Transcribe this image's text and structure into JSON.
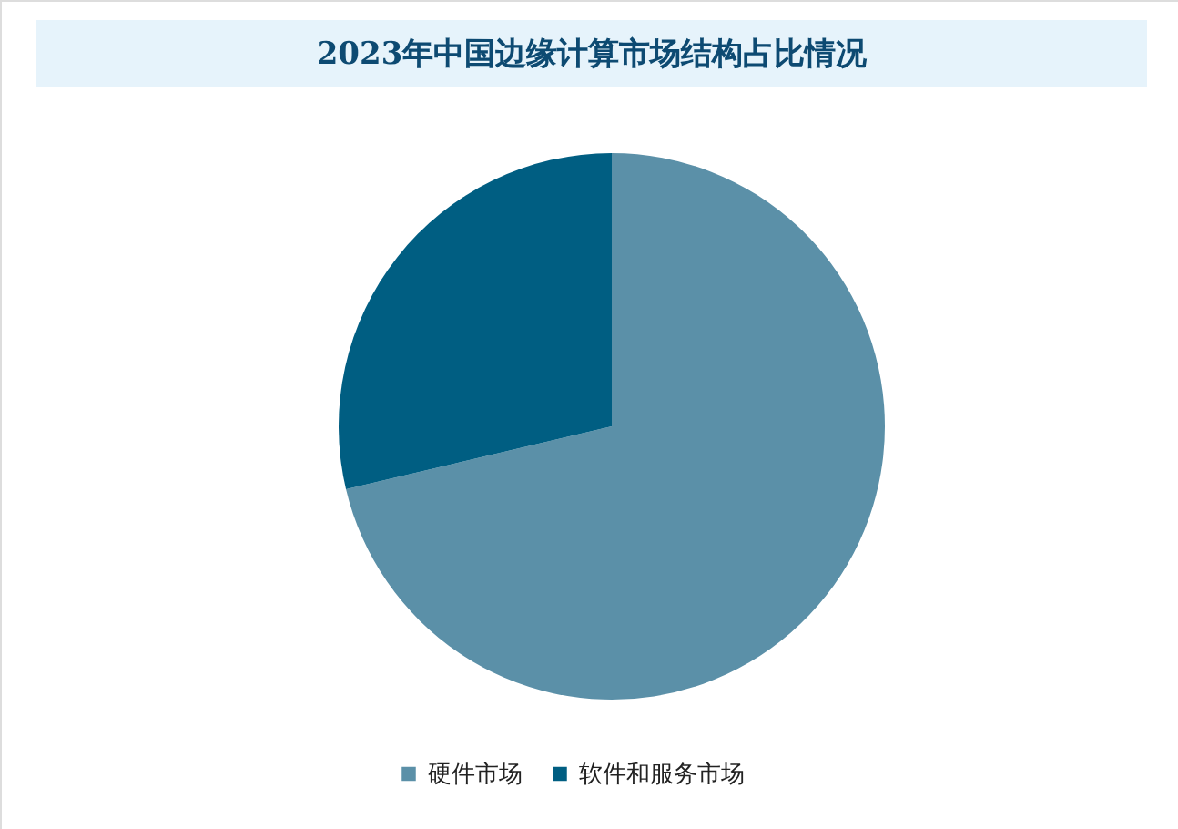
{
  "chart_data": {
    "type": "pie",
    "title": "2023年中国边缘计算市场结构占比情况",
    "categories": [
      "硬件市场",
      "软件和服务市场"
    ],
    "values": [
      71.3,
      28.7
    ],
    "colors": [
      "#5b90a8",
      "#005e82"
    ],
    "legend": "bottom"
  }
}
